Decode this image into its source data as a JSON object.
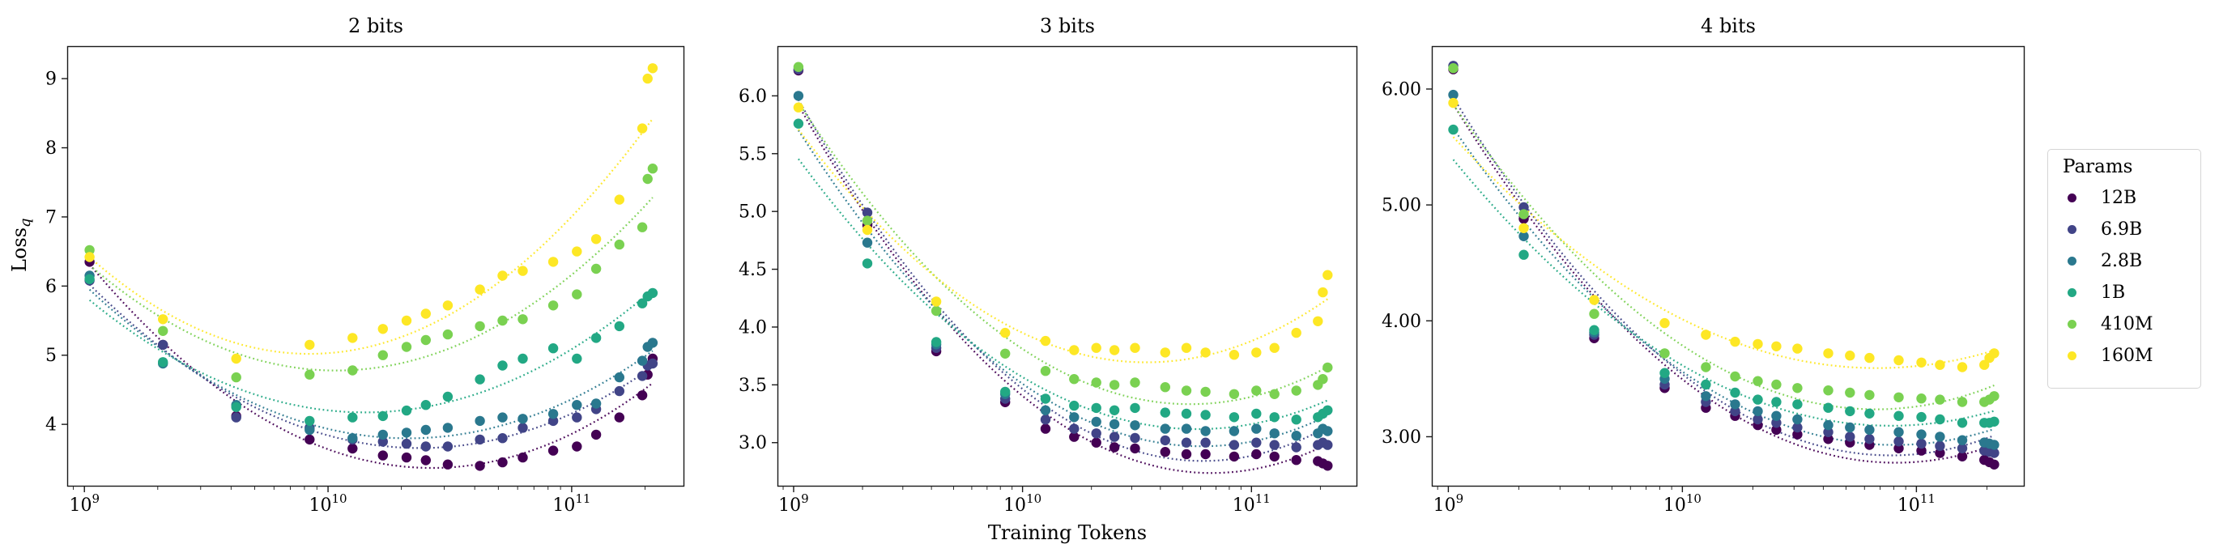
{
  "figure": {
    "background": "#ffffff"
  },
  "ylabel": {
    "text": "Loss",
    "subscript": "q"
  },
  "xlabel": {
    "text": "Training Tokens"
  },
  "legend": {
    "title": "Params",
    "entries": [
      {
        "label": "12B",
        "color": "#440154"
      },
      {
        "label": "6.9B",
        "color": "#414487"
      },
      {
        "label": "2.8B",
        "color": "#2a788e"
      },
      {
        "label": "1B",
        "color": "#22a884"
      },
      {
        "label": "410M",
        "color": "#7ad151"
      },
      {
        "label": "160M",
        "color": "#fde725"
      }
    ]
  },
  "chart_data": {
    "type": "scatter",
    "xscale": "log",
    "xlabel": "Training Tokens",
    "ylabel": "Loss_q",
    "fit": "dotted quadratic fit in log10(x) per series",
    "legend_position": "right-outside",
    "xlim": [
      850000000,
      290000000000
    ],
    "xticks": [
      1000000000,
      10000000000,
      100000000000
    ],
    "xtick_labels": [
      "10^9",
      "10^10",
      "10^11"
    ],
    "x_tokens": [
      1050000000.0,
      2100000000.0,
      4200000000.0,
      8400000000.0,
      12600000000.0,
      16800000000.0,
      21000000000.0,
      25200000000.0,
      31000000000.0,
      42000000000.0,
      52000000000.0,
      63000000000.0,
      84000000000.0,
      105000000000.0,
      126000000000.0,
      157000000000.0,
      195000000000.0,
      205000000000.0,
      215000000000.0
    ],
    "panels": [
      {
        "title": "2 bits",
        "ylim": [
          3.1,
          9.47
        ],
        "yticks": [
          4,
          5,
          6,
          7,
          8,
          9
        ],
        "ytick_labels": [
          "4",
          "5",
          "6",
          "7",
          "8",
          "9"
        ],
        "series": [
          {
            "name": "12B",
            "color": "#440154",
            "y": [
              6.35,
              5.15,
              4.12,
              3.78,
              3.65,
              3.55,
              3.52,
              3.48,
              3.42,
              3.4,
              3.45,
              3.52,
              3.62,
              3.68,
              3.85,
              4.1,
              4.42,
              4.72,
              4.95
            ]
          },
          {
            "name": "6.9B",
            "color": "#414487",
            "y": [
              6.08,
              5.15,
              4.1,
              3.95,
              3.78,
              3.75,
              3.72,
              3.68,
              3.68,
              3.78,
              3.8,
              3.95,
              4.05,
              4.1,
              4.22,
              4.48,
              4.7,
              4.85,
              4.88
            ]
          },
          {
            "name": "2.8B",
            "color": "#2a788e",
            "y": [
              6.15,
              4.88,
              4.28,
              3.92,
              3.8,
              3.85,
              3.88,
              3.92,
              3.95,
              4.05,
              4.1,
              4.08,
              4.15,
              4.28,
              4.3,
              4.68,
              4.92,
              5.12,
              5.18
            ]
          },
          {
            "name": "1B",
            "color": "#22a884",
            "y": [
              6.1,
              4.9,
              4.25,
              4.05,
              4.1,
              4.12,
              4.2,
              4.28,
              4.4,
              4.65,
              4.85,
              4.95,
              5.1,
              4.95,
              5.25,
              5.42,
              5.75,
              5.85,
              5.9
            ]
          },
          {
            "name": "410M",
            "color": "#7ad151",
            "y": [
              6.52,
              5.35,
              4.68,
              4.72,
              4.78,
              5.0,
              5.12,
              5.22,
              5.3,
              5.42,
              5.5,
              5.52,
              5.72,
              5.88,
              6.25,
              6.6,
              6.85,
              7.55,
              7.7
            ]
          },
          {
            "name": "160M",
            "color": "#fde725",
            "y": [
              6.42,
              5.52,
              4.95,
              5.15,
              5.25,
              5.38,
              5.5,
              5.6,
              5.72,
              5.95,
              6.15,
              6.22,
              6.35,
              6.5,
              6.68,
              7.25,
              8.28,
              9.0,
              9.15
            ]
          }
        ]
      },
      {
        "title": "3 bits",
        "ylim": [
          2.62,
          6.43
        ],
        "yticks": [
          3.0,
          3.5,
          4.0,
          4.5,
          5.0,
          5.5,
          6.0
        ],
        "ytick_labels": [
          "3.0",
          "3.5",
          "4.0",
          "4.5",
          "5.0",
          "5.5",
          "6.0"
        ],
        "series": [
          {
            "name": "12B",
            "color": "#440154",
            "y": [
              6.22,
              4.88,
              3.79,
              3.35,
              3.12,
              3.05,
              3.0,
              2.96,
              2.95,
              2.92,
              2.9,
              2.9,
              2.88,
              2.9,
              2.88,
              2.85,
              2.84,
              2.82,
              2.8
            ]
          },
          {
            "name": "6.9B",
            "color": "#414487",
            "y": [
              6.23,
              4.99,
              3.82,
              3.38,
              3.2,
              3.12,
              3.08,
              3.05,
              3.04,
              3.02,
              3.0,
              3.0,
              2.98,
              3.0,
              2.98,
              2.96,
              2.98,
              3.0,
              2.98
            ]
          },
          {
            "name": "2.8B",
            "color": "#2a788e",
            "y": [
              6.0,
              4.73,
              3.85,
              3.42,
              3.28,
              3.22,
              3.18,
              3.16,
              3.15,
              3.12,
              3.12,
              3.1,
              3.1,
              3.12,
              3.08,
              3.06,
              3.08,
              3.12,
              3.1
            ]
          },
          {
            "name": "1B",
            "color": "#22a884",
            "y": [
              5.76,
              4.55,
              3.87,
              3.44,
              3.38,
              3.32,
              3.3,
              3.28,
              3.3,
              3.26,
              3.25,
              3.24,
              3.22,
              3.25,
              3.22,
              3.2,
              3.22,
              3.25,
              3.28
            ]
          },
          {
            "name": "410M",
            "color": "#7ad151",
            "y": [
              6.25,
              4.92,
              4.14,
              3.77,
              3.62,
              3.55,
              3.52,
              3.5,
              3.52,
              3.48,
              3.45,
              3.44,
              3.42,
              3.45,
              3.42,
              3.45,
              3.5,
              3.55,
              3.65
            ]
          },
          {
            "name": "160M",
            "color": "#fde725",
            "y": [
              5.9,
              4.84,
              4.22,
              3.95,
              3.88,
              3.8,
              3.82,
              3.8,
              3.82,
              3.78,
              3.82,
              3.78,
              3.76,
              3.78,
              3.82,
              3.95,
              4.05,
              4.3,
              4.45
            ]
          }
        ]
      },
      {
        "title": "4 bits",
        "ylim": [
          2.57,
          6.37
        ],
        "yticks": [
          3.0,
          4.0,
          5.0,
          6.0
        ],
        "ytick_labels": [
          "3.00",
          "4.00",
          "5.00",
          "6.00"
        ],
        "series": [
          {
            "name": "12B",
            "color": "#440154",
            "y": [
              6.17,
              4.88,
              3.85,
              3.42,
              3.25,
              3.18,
              3.1,
              3.06,
              3.02,
              2.98,
              2.95,
              2.93,
              2.9,
              2.88,
              2.86,
              2.83,
              2.8,
              2.78,
              2.76
            ]
          },
          {
            "name": "6.9B",
            "color": "#414487",
            "y": [
              6.2,
              4.98,
              3.88,
              3.45,
              3.3,
              3.22,
              3.15,
              3.12,
              3.08,
              3.04,
              3.0,
              2.98,
              2.96,
              2.94,
              2.92,
              2.9,
              2.88,
              2.87,
              2.86
            ]
          },
          {
            "name": "2.8B",
            "color": "#2a788e",
            "y": [
              5.95,
              4.73,
              3.9,
              3.5,
              3.35,
              3.28,
              3.22,
              3.18,
              3.15,
              3.1,
              3.08,
              3.06,
              3.04,
              3.02,
              3.0,
              2.97,
              2.95,
              2.94,
              2.93
            ]
          },
          {
            "name": "1B",
            "color": "#22a884",
            "y": [
              5.65,
              4.57,
              3.92,
              3.55,
              3.45,
              3.38,
              3.32,
              3.3,
              3.28,
              3.25,
              3.22,
              3.2,
              3.18,
              3.17,
              3.15,
              3.12,
              3.12,
              3.12,
              3.13
            ]
          },
          {
            "name": "410M",
            "color": "#7ad151",
            "y": [
              6.18,
              4.92,
              4.06,
              3.72,
              3.6,
              3.52,
              3.48,
              3.45,
              3.42,
              3.4,
              3.38,
              3.36,
              3.34,
              3.33,
              3.32,
              3.3,
              3.3,
              3.32,
              3.35
            ]
          },
          {
            "name": "160M",
            "color": "#fde725",
            "y": [
              5.88,
              4.8,
              4.18,
              3.98,
              3.88,
              3.82,
              3.8,
              3.78,
              3.76,
              3.72,
              3.7,
              3.68,
              3.66,
              3.64,
              3.62,
              3.6,
              3.62,
              3.68,
              3.72
            ]
          }
        ]
      }
    ]
  }
}
